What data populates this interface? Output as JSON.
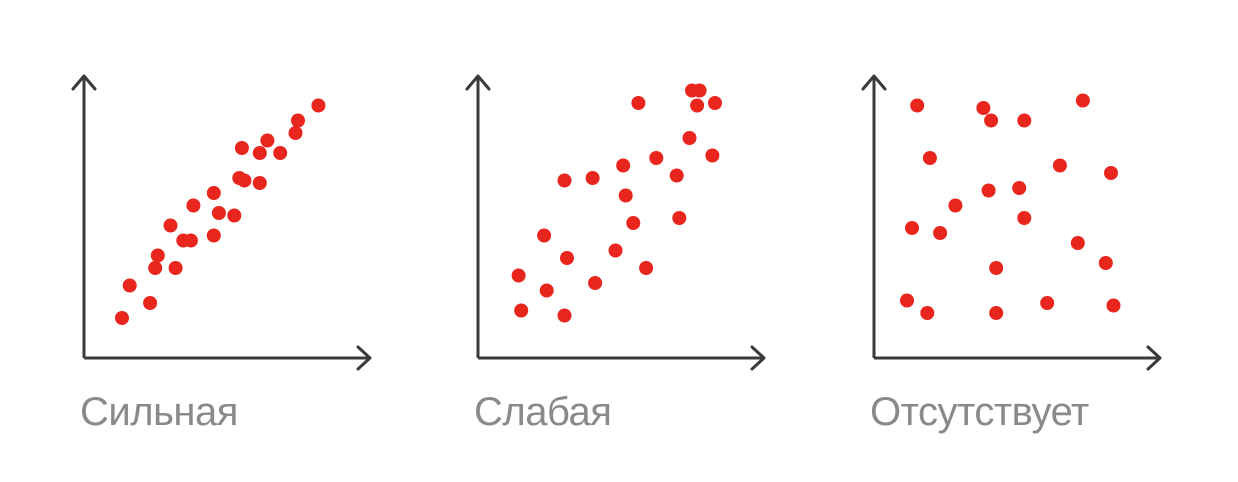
{
  "colors": {
    "axis": "#3a3a3a",
    "point": "#e8261d",
    "caption": "#8a8a8a"
  },
  "chart_data": [
    {
      "type": "scatter",
      "title": "Сильная",
      "xlim": [
        0,
        100
      ],
      "ylim": [
        0,
        100
      ],
      "points": [
        [
          11,
          10
        ],
        [
          14,
          23
        ],
        [
          22,
          16
        ],
        [
          24,
          30
        ],
        [
          25,
          35
        ],
        [
          32,
          30
        ],
        [
          30,
          47
        ],
        [
          35,
          41
        ],
        [
          39,
          55
        ],
        [
          38,
          41
        ],
        [
          47,
          43
        ],
        [
          47,
          60
        ],
        [
          49,
          52
        ],
        [
          55,
          51
        ],
        [
          57,
          66
        ],
        [
          58,
          78
        ],
        [
          59,
          65
        ],
        [
          65,
          76
        ],
        [
          65,
          64
        ],
        [
          68,
          81
        ],
        [
          73,
          76
        ],
        [
          79,
          84
        ],
        [
          80,
          89
        ],
        [
          88,
          95
        ]
      ]
    },
    {
      "type": "scatter",
      "title": "Слабая",
      "xlim": [
        0,
        100
      ],
      "ylim": [
        0,
        100
      ],
      "points": [
        [
          12,
          27
        ],
        [
          13,
          13
        ],
        [
          22,
          43
        ],
        [
          23,
          21
        ],
        [
          30,
          65
        ],
        [
          31,
          34
        ],
        [
          30,
          11
        ],
        [
          42,
          24
        ],
        [
          41,
          66
        ],
        [
          50,
          37
        ],
        [
          53,
          71
        ],
        [
          54,
          59
        ],
        [
          57,
          48
        ],
        [
          59,
          96
        ],
        [
          62,
          30
        ],
        [
          66,
          74
        ],
        [
          74,
          67
        ],
        [
          75,
          50
        ],
        [
          79,
          82
        ],
        [
          82,
          95
        ],
        [
          83,
          101
        ],
        [
          88,
          75
        ],
        [
          89,
          96
        ],
        [
          80,
          101
        ]
      ]
    },
    {
      "type": "scatter",
      "title": "Отсутствует",
      "xlim": [
        0,
        100
      ],
      "ylim": [
        0,
        100
      ],
      "points": [
        [
          9,
          17
        ],
        [
          11,
          46
        ],
        [
          13,
          95
        ],
        [
          17,
          12
        ],
        [
          18,
          74
        ],
        [
          22,
          44
        ],
        [
          28,
          55
        ],
        [
          39,
          94
        ],
        [
          41,
          61
        ],
        [
          42,
          89
        ],
        [
          44,
          30
        ],
        [
          44,
          12
        ],
        [
          53,
          62
        ],
        [
          55,
          50
        ],
        [
          55,
          89
        ],
        [
          64,
          16
        ],
        [
          69,
          71
        ],
        [
          76,
          40
        ],
        [
          78,
          97
        ],
        [
          87,
          32
        ],
        [
          89,
          68
        ],
        [
          90,
          15
        ]
      ]
    }
  ]
}
